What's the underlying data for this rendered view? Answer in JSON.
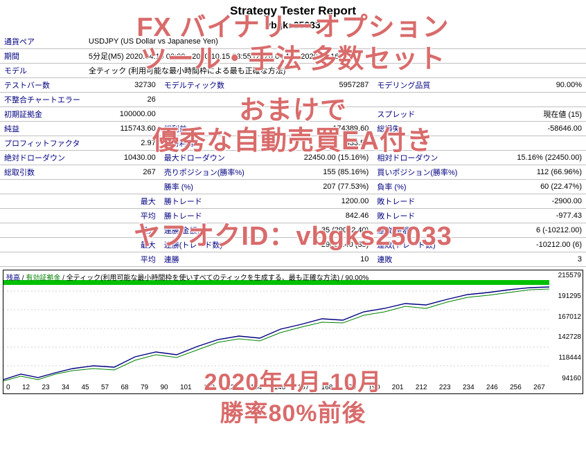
{
  "header": {
    "title": "Strategy Tester Report",
    "subtitle": "vbgks25033"
  },
  "rows": {
    "pair_label": "通貨ペア",
    "pair_value": "USDJPY (US Dollar vs Japanese Yen)",
    "period_label": "期間",
    "period_value": "5分足(M5) 2020.04.16 00:00 - 2020.10.15 23:55 (2020.04.16 - 2020.10.16)",
    "model_label": "モデル",
    "model_value": "全ティック (利用可能な最小時間枠による最も正確な方法)",
    "bars_label": "テストバー数",
    "bars_value": "32730",
    "ticks_label": "モデルティック数",
    "ticks_value": "5957287",
    "quality_label": "モデリング品質",
    "quality_value": "90.00%",
    "mismatch_label": "不整合チャートエラー",
    "mismatch_value": "26",
    "deposit_label": "初期証拠金",
    "deposit_value": "100000.00",
    "spread_label": "スプレッド",
    "spread_value": "現在値 (15)",
    "netprofit_label": "純益",
    "netprofit_value": "115743.60",
    "gross_profit_label": "総利益",
    "gross_profit_value": "174389.60",
    "gross_loss_label": "総損失",
    "gross_loss_value": "-58646.00",
    "pf_label": "プロフィットファクタ",
    "pf_value": "2.97",
    "expected_label": "期待利得",
    "expected_value": "433.50",
    "absdd_label": "絶対ドローダウン",
    "absdd_value": "10430.00",
    "maxdd_label": "最大ドローダウン",
    "maxdd_value": "22450.00 (15.16%)",
    "reldd_label": "相対ドローダウン",
    "reldd_value": "15.16% (22450.00)",
    "total_label": "総取引数",
    "total_value": "267",
    "short_label": "売りポジション(勝率%)",
    "short_value": "155 (85.16%)",
    "long_label": "買いポジション(勝率%)",
    "long_value": "112 (66.96%)",
    "winrate_label": "勝率 (%)",
    "winrate_value": "207 (77.53%)",
    "lossrate_label": "負率 (%)",
    "lossrate_value": "60 (22.47%)",
    "max_label": "最大",
    "largest_win_label": "勝トレード",
    "largest_win_value": "1200.00",
    "largest_loss_label": "敗トレード",
    "largest_loss_value": "-2900.00",
    "avg_label": "平均",
    "avg_win_label": "勝トレード",
    "avg_win_value": "842.46",
    "avg_loss_label": "敗トレード",
    "avg_loss_value": "-977.43",
    "max2_label": "最大",
    "cons_win_amt_label": "連勝(金額)",
    "cons_win_amt_value": "35 (29022.40)",
    "cons_loss_amt_label": "連敗(金額)",
    "cons_loss_amt_value": "6 (-10212.00)",
    "max3_label": "最大",
    "cons_win_trd_label": "連勝(トレード数)",
    "cons_win_trd_value": "29022.40 (35)",
    "cons_loss_trd_label": "連敗(トレード数)",
    "cons_loss_trd_value": "-10212.00 (6)",
    "avg2_label": "平均",
    "avg_cons_win_label": "連勝",
    "avg_cons_win_value": "10",
    "avg_cons_loss_label": "連敗",
    "avg_cons_loss_value": "3"
  },
  "chart": {
    "legend_balance": "残高",
    "legend_equity": "有効証拠金",
    "legend_note": "全ティック(利用可能な最小時間枠を使いすべてのティックを生成する、最も正確な方法) / 90.00%",
    "y_labels": [
      "215579",
      "191295",
      "167012",
      "142728",
      "118444",
      "94160"
    ],
    "x_labels": [
      "0",
      "12",
      "23",
      "34",
      "45",
      "57",
      "68",
      "79",
      "90",
      "101",
      "113",
      "124",
      "134",
      "146",
      "157",
      "168",
      "179",
      "190",
      "201",
      "212",
      "223",
      "234",
      "246",
      "256",
      "267"
    ],
    "line_color": "#000080",
    "eq_color": "#008000",
    "grid_color": "#d0d0d0",
    "quality_band_color": "#00c000"
  },
  "overlay": {
    "line1": "FX バイナリーオプション",
    "line2": "ツール・手法 多数セット",
    "line3": "おまけで",
    "line4": "優秀な自動売買EA付き",
    "line5": "ヤフオクID：vbgks25033",
    "line6": "2020年4月-10月",
    "line7": "勝率80%前後"
  }
}
